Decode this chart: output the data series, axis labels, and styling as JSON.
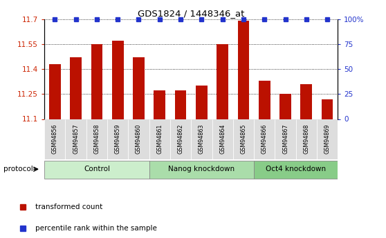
{
  "title": "GDS1824 / 1448346_at",
  "samples": [
    "GSM94856",
    "GSM94857",
    "GSM94858",
    "GSM94859",
    "GSM94860",
    "GSM94861",
    "GSM94862",
    "GSM94863",
    "GSM94864",
    "GSM94865",
    "GSM94866",
    "GSM94867",
    "GSM94868",
    "GSM94869"
  ],
  "bar_values": [
    11.43,
    11.47,
    11.55,
    11.57,
    11.47,
    11.27,
    11.27,
    11.3,
    11.55,
    11.69,
    11.33,
    11.25,
    11.31,
    11.22
  ],
  "bar_color": "#BB1100",
  "dot_color": "#2233CC",
  "ymin": 11.1,
  "ymax": 11.7,
  "yticks": [
    11.1,
    11.25,
    11.4,
    11.55,
    11.7
  ],
  "ytick_labels": [
    "11.1",
    "11.25",
    "11.4",
    "11.55",
    "11.7"
  ],
  "right_yticks": [
    0,
    25,
    50,
    75,
    100
  ],
  "right_ytick_labels": [
    "0",
    "25",
    "50",
    "75",
    "100%"
  ],
  "groups": [
    {
      "label": "Control",
      "start": 0,
      "end": 5,
      "color": "#CCEECC"
    },
    {
      "label": "Nanog knockdown",
      "start": 5,
      "end": 10,
      "color": "#AADDAA"
    },
    {
      "label": "Oct4 knockdown",
      "start": 10,
      "end": 14,
      "color": "#88CC88"
    }
  ],
  "protocol_label": "protocol",
  "legend_items": [
    {
      "color": "#BB1100",
      "label": "transformed count"
    },
    {
      "color": "#2233CC",
      "label": "percentile rank within the sample"
    }
  ],
  "tick_label_color_left": "#CC2200",
  "tick_label_color_right": "#2233CC",
  "bar_width": 0.55,
  "sample_bg_color": "#DDDDDD"
}
